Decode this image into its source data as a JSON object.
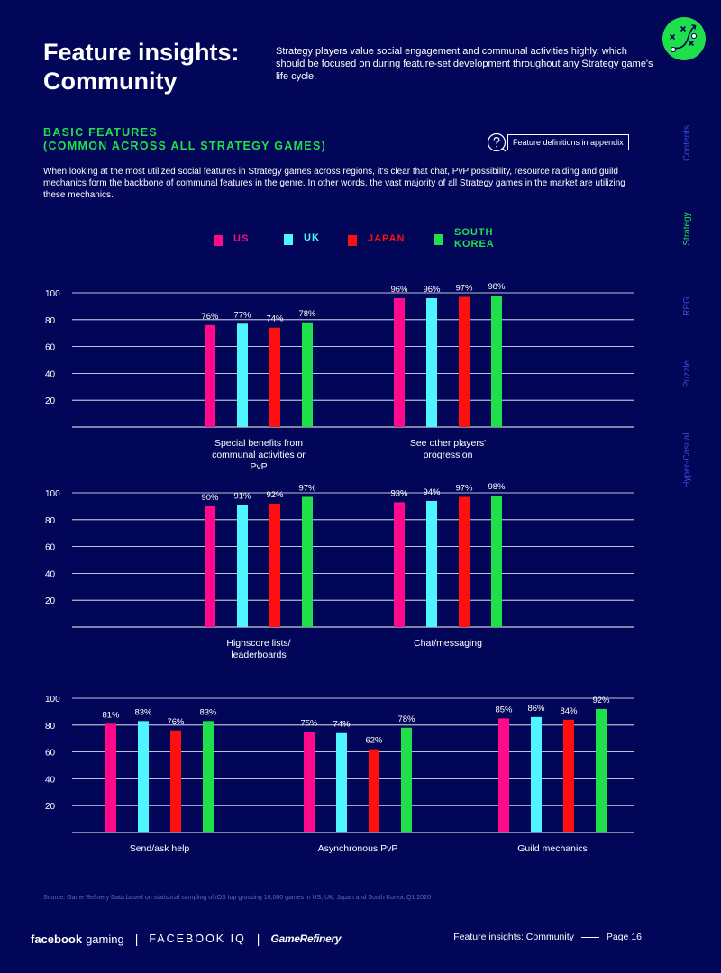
{
  "header": {
    "title": "Feature insights: Community",
    "intro": "Strategy players value social engagement and communal activities highly, which should be focused on during feature-set development throughout any Strategy game's life cycle."
  },
  "section": {
    "heading_line1": "BASIC FEATURES",
    "heading_line2": "(COMMON ACROSS ALL STRATEGY GAMES)",
    "appendix_label": "Feature definitions in appendix",
    "body": "When looking at the most utilized social features in Strategy games across regions, it's clear that chat, PvP possibility, resource raiding and guild mechanics form the backbone of communal features in the genre. In other words, the vast majority of all Strategy games in the market are utilizing these mechanics."
  },
  "side_nav": {
    "items": [
      "Contents",
      "Strategy",
      "RPG",
      "Puzzle",
      "Hyper-Casual"
    ],
    "active": "Strategy"
  },
  "colors": {
    "background": "#020659",
    "accent": "#1fe04a",
    "US": "#ff0a8a",
    "UK": "#4ff5ff",
    "JAPAN": "#ff1010",
    "SOUTH KOREA": "#1fe04a"
  },
  "legend": [
    {
      "label": "US",
      "color": "#ff0a8a"
    },
    {
      "label": "UK",
      "color": "#4ff5ff"
    },
    {
      "label": "JAPAN",
      "color": "#ff1010"
    },
    {
      "label": "SOUTH KOREA",
      "color": "#1fe04a"
    }
  ],
  "chart_data": [
    {
      "type": "bar",
      "ylim": [
        0,
        100
      ],
      "yticks": [
        20,
        40,
        60,
        80,
        100
      ],
      "grid": true,
      "series_names": [
        "US",
        "UK",
        "JAPAN",
        "SOUTH KOREA"
      ],
      "groups": [
        {
          "label": "Special benefits from communal activities or PvP",
          "values": [
            76,
            77,
            74,
            78
          ]
        },
        {
          "label": "See other players' progression",
          "values": [
            96,
            96,
            97,
            98
          ]
        }
      ]
    },
    {
      "type": "bar",
      "ylim": [
        0,
        100
      ],
      "yticks": [
        20,
        40,
        60,
        80,
        100
      ],
      "grid": true,
      "series_names": [
        "US",
        "UK",
        "JAPAN",
        "SOUTH KOREA"
      ],
      "groups": [
        {
          "label": "Highscore lists/ leaderboards",
          "values": [
            90,
            91,
            92,
            97
          ]
        },
        {
          "label": "Chat/messaging",
          "values": [
            93,
            94,
            97,
            98
          ]
        }
      ]
    },
    {
      "type": "bar",
      "ylim": [
        0,
        100
      ],
      "yticks": [
        20,
        40,
        60,
        80,
        100
      ],
      "grid": true,
      "series_names": [
        "US",
        "UK",
        "JAPAN",
        "SOUTH KOREA"
      ],
      "groups": [
        {
          "label": "Send/ask help",
          "values": [
            81,
            83,
            76,
            83
          ]
        },
        {
          "label": "Asynchronous PvP",
          "values": [
            75,
            74,
            62,
            78
          ]
        },
        {
          "label": "Guild mechanics",
          "values": [
            85,
            86,
            84,
            92
          ]
        }
      ]
    }
  ],
  "source": "Source: Game Refinery Data based on statistical sampling of iOS top grossing 10,000 games in US, UK, Japan and South Korea, Q1 2020",
  "footer": {
    "brand_facebook": "facebook",
    "brand_gaming": "gaming",
    "brand_iq": "FACEBOOK IQ",
    "brand_gr": "GameRefinery",
    "page_label": "Feature insights: Community",
    "page_number": "Page 16"
  }
}
